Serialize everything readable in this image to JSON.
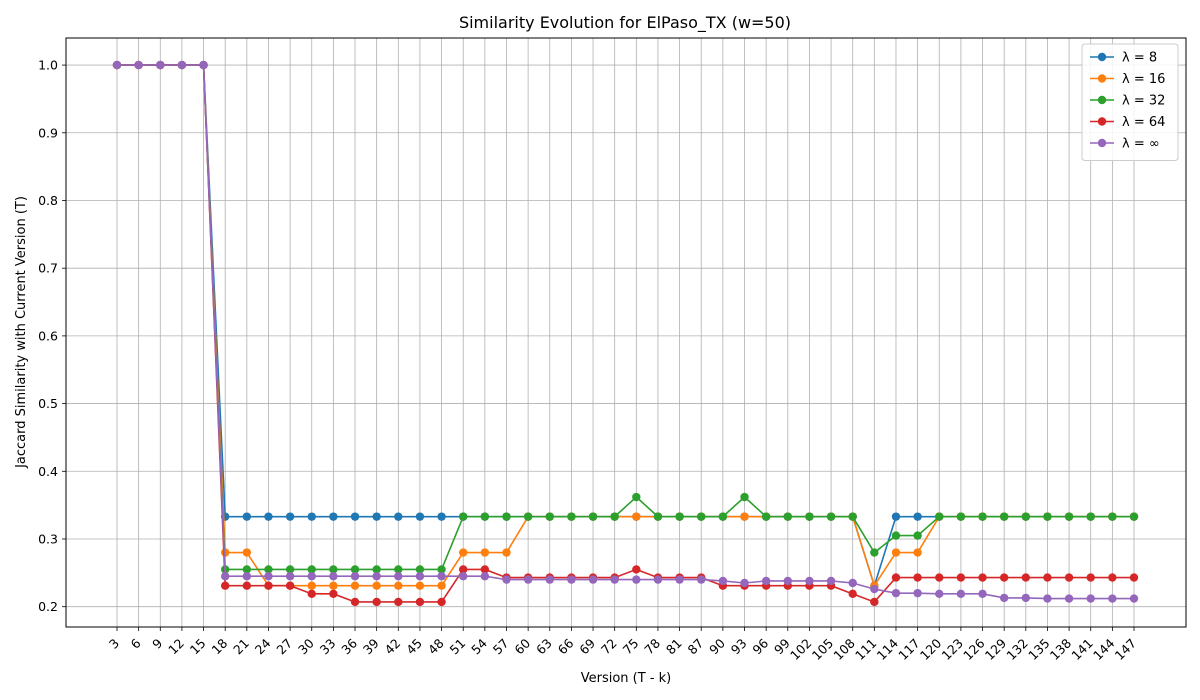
{
  "chart_data": {
    "type": "line",
    "title": "Similarity Evolution for ElPaso_TX (w=50)",
    "xlabel": "Version (T - k)",
    "ylabel": "Jaccard Similarity with Current Version (T)",
    "ylim": [
      0.17,
      1.04
    ],
    "yticks": [
      0.2,
      0.3,
      0.4,
      0.5,
      0.6,
      0.7,
      0.8,
      0.9,
      1.0
    ],
    "ytick_labels": [
      "0.2",
      "0.3",
      "0.4",
      "0.5",
      "0.6",
      "0.7",
      "0.8",
      "0.9",
      "1.0"
    ],
    "grid": true,
    "legend_position": "top-right",
    "x": [
      3,
      6,
      9,
      12,
      15,
      18,
      21,
      24,
      27,
      30,
      33,
      36,
      39,
      42,
      45,
      48,
      51,
      54,
      57,
      60,
      63,
      66,
      69,
      72,
      75,
      78,
      81,
      87,
      90,
      93,
      96,
      99,
      102,
      105,
      108,
      111,
      114,
      117,
      120,
      123,
      126,
      129,
      132,
      135,
      138,
      141,
      144,
      147
    ],
    "x_labels": [
      "3",
      "6",
      "9",
      "12",
      "15",
      "18",
      "21",
      "24",
      "27",
      "30",
      "33",
      "36",
      "39",
      "42",
      "45",
      "48",
      "51",
      "54",
      "57",
      "60",
      "63",
      "66",
      "69",
      "72",
      "75",
      "78",
      "81",
      "87",
      "90",
      "93",
      "96",
      "99",
      "102",
      "105",
      "108",
      "111",
      "114",
      "117",
      "120",
      "123",
      "126",
      "129",
      "132",
      "135",
      "138",
      "141",
      "144",
      "147"
    ],
    "series": [
      {
        "name": "λ = 8",
        "color": "#1f77b4",
        "values": [
          1.0,
          1.0,
          1.0,
          1.0,
          1.0,
          0.333,
          0.333,
          0.333,
          0.333,
          0.333,
          0.333,
          0.333,
          0.333,
          0.333,
          0.333,
          0.333,
          0.333,
          0.333,
          0.333,
          0.333,
          0.333,
          0.333,
          0.333,
          0.333,
          0.333,
          0.333,
          0.333,
          0.333,
          0.333,
          0.333,
          0.333,
          0.333,
          0.333,
          0.333,
          0.333,
          0.231,
          0.333,
          0.333,
          0.333,
          0.333,
          0.333,
          0.333,
          0.333,
          0.333,
          0.333,
          0.333,
          0.333,
          0.333
        ]
      },
      {
        "name": "λ = 16",
        "color": "#ff7f0e",
        "values": [
          1.0,
          1.0,
          1.0,
          1.0,
          1.0,
          0.28,
          0.28,
          0.231,
          0.231,
          0.231,
          0.231,
          0.231,
          0.231,
          0.231,
          0.231,
          0.231,
          0.28,
          0.28,
          0.28,
          0.333,
          0.333,
          0.333,
          0.333,
          0.333,
          0.333,
          0.333,
          0.333,
          0.333,
          0.333,
          0.333,
          0.333,
          0.333,
          0.333,
          0.333,
          0.333,
          0.231,
          0.28,
          0.28,
          0.333,
          0.333,
          0.333,
          0.333,
          0.333,
          0.333,
          0.333,
          0.333,
          0.333,
          0.333
        ]
      },
      {
        "name": "λ = 32",
        "color": "#2ca02c",
        "values": [
          1.0,
          1.0,
          1.0,
          1.0,
          1.0,
          0.255,
          0.255,
          0.255,
          0.255,
          0.255,
          0.255,
          0.255,
          0.255,
          0.255,
          0.255,
          0.255,
          0.333,
          0.333,
          0.333,
          0.333,
          0.333,
          0.333,
          0.333,
          0.333,
          0.362,
          0.333,
          0.333,
          0.333,
          0.333,
          0.362,
          0.333,
          0.333,
          0.333,
          0.333,
          0.333,
          0.28,
          0.305,
          0.305,
          0.333,
          0.333,
          0.333,
          0.333,
          0.333,
          0.333,
          0.333,
          0.333,
          0.333,
          0.333
        ]
      },
      {
        "name": "λ = 64",
        "color": "#d62728",
        "values": [
          1.0,
          1.0,
          1.0,
          1.0,
          1.0,
          0.231,
          0.231,
          0.231,
          0.231,
          0.219,
          0.219,
          0.207,
          0.207,
          0.207,
          0.207,
          0.207,
          0.255,
          0.255,
          0.243,
          0.243,
          0.243,
          0.243,
          0.243,
          0.243,
          0.255,
          0.243,
          0.243,
          0.243,
          0.231,
          0.231,
          0.231,
          0.231,
          0.231,
          0.231,
          0.219,
          0.207,
          0.243,
          0.243,
          0.243,
          0.243,
          0.243,
          0.243,
          0.243,
          0.243,
          0.243,
          0.243,
          0.243,
          0.243
        ]
      },
      {
        "name": "λ = ∞",
        "color": "#9467bd",
        "values": [
          1.0,
          1.0,
          1.0,
          1.0,
          1.0,
          0.245,
          0.245,
          0.245,
          0.245,
          0.245,
          0.245,
          0.245,
          0.245,
          0.245,
          0.245,
          0.245,
          0.245,
          0.245,
          0.24,
          0.24,
          0.24,
          0.24,
          0.24,
          0.24,
          0.24,
          0.24,
          0.24,
          0.24,
          0.238,
          0.235,
          0.238,
          0.238,
          0.238,
          0.238,
          0.235,
          0.226,
          0.22,
          0.22,
          0.219,
          0.219,
          0.219,
          0.213,
          0.213,
          0.212,
          0.212,
          0.212,
          0.212,
          0.212
        ]
      }
    ]
  }
}
